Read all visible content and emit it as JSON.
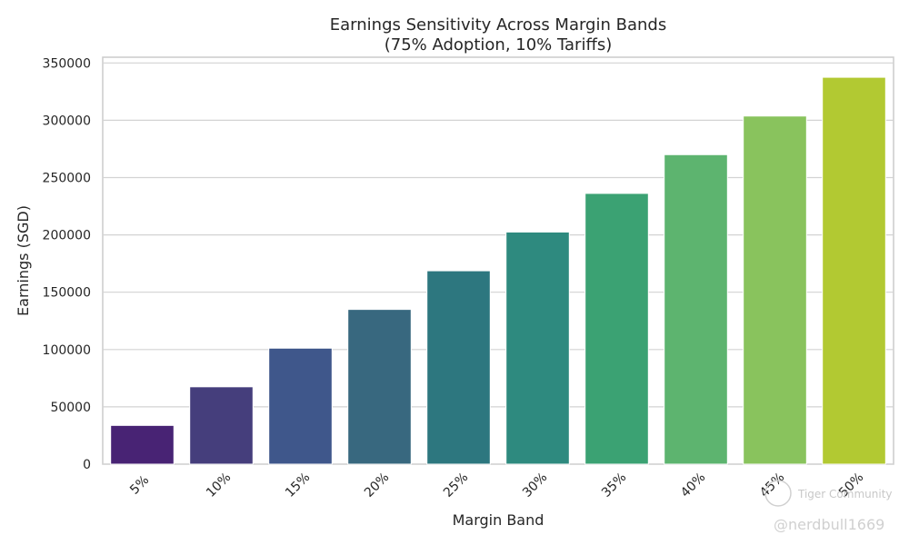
{
  "chart_data": {
    "type": "bar",
    "title": [
      "Earnings Sensitivity Across Margin Bands",
      "(75% Adoption, 10% Tariffs)"
    ],
    "xlabel": "Margin Band",
    "ylabel": "Earnings (SGD)",
    "categories": [
      "5%",
      "10%",
      "15%",
      "20%",
      "25%",
      "30%",
      "35%",
      "40%",
      "45%",
      "50%"
    ],
    "values": [
      33800,
      67500,
      101200,
      135000,
      168700,
      202500,
      236200,
      270000,
      303700,
      337500
    ],
    "ylim": [
      0,
      355000
    ],
    "yticks": [
      0,
      50000,
      100000,
      150000,
      200000,
      250000,
      300000,
      350000
    ],
    "grid": "horizontal",
    "colors": [
      "#482374",
      "#453e7c",
      "#3f578b",
      "#38687f",
      "#2d777f",
      "#2e8a7f",
      "#3ba273",
      "#5db46f",
      "#89c35d",
      "#b2c932"
    ]
  },
  "watermark": {
    "brand": "Tiger Community",
    "handle": "@nerdbull1669"
  }
}
